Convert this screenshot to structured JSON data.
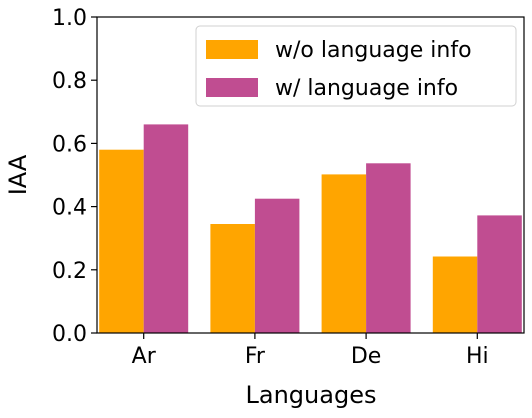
{
  "chart_data": {
    "type": "bar",
    "categories": [
      "Ar",
      "Fr",
      "De",
      "Hi"
    ],
    "series": [
      {
        "name": "w/o language info",
        "color": "#FFA500",
        "values": [
          0.58,
          0.345,
          0.502,
          0.242
        ]
      },
      {
        "name": "w/ language info",
        "color": "#C04D91",
        "values": [
          0.66,
          0.425,
          0.537,
          0.372
        ]
      }
    ],
    "xlabel": "Languages",
    "ylabel": "IAA",
    "ylim": [
      0,
      1.0
    ],
    "yticks": [
      "0.0",
      "0.2",
      "0.4",
      "0.6",
      "0.8",
      "1.0"
    ],
    "grid": false,
    "legend_position": "top-right"
  }
}
